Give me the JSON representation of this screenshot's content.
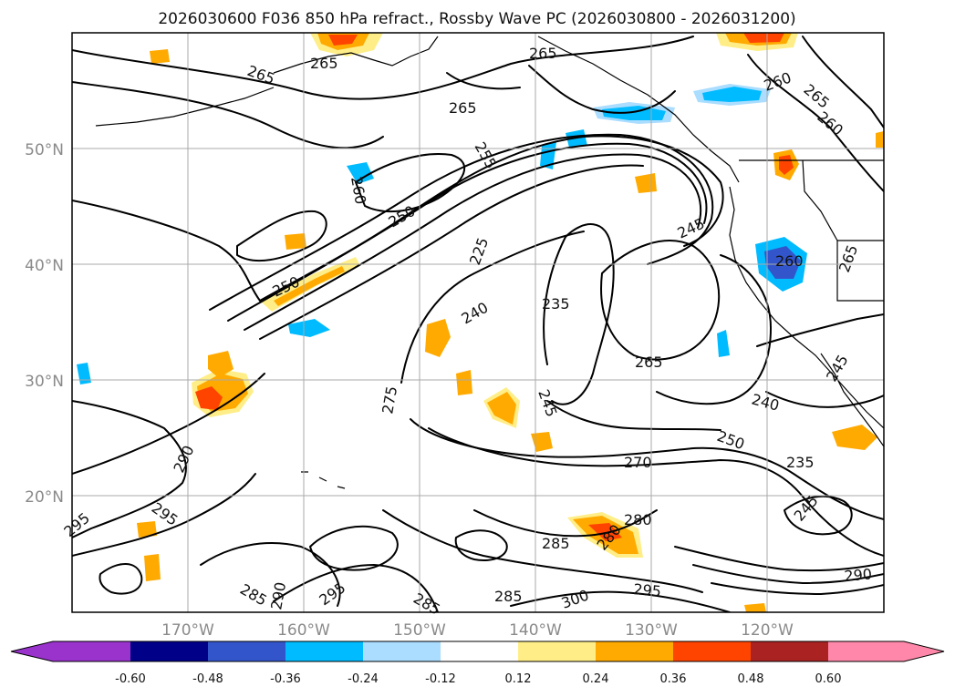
{
  "title": "2026030600 F036 850 hPa refract., Rossby Wave PC (2026030800 - 2026031200)",
  "lat_labels": [
    "50°N",
    "40°N",
    "30°N",
    "20°N"
  ],
  "lon_labels": [
    "170°W",
    "160°W",
    "150°W",
    "140°W",
    "130°W",
    "120°W"
  ],
  "contour_labels": [
    "265",
    "265",
    "265",
    "265",
    "260",
    "265",
    "260",
    "255",
    "260",
    "250",
    "250",
    "245",
    "260",
    "225",
    "240",
    "235",
    "265",
    "265",
    "245",
    "240",
    "270",
    "250",
    "235",
    "245",
    "245",
    "275",
    "290",
    "295",
    "295",
    "285",
    "290",
    "295",
    "285",
    "285",
    "300",
    "280",
    "280",
    "285",
    "295",
    "290"
  ],
  "colorbar": {
    "ticks": [
      "-0.60",
      "-0.48",
      "-0.36",
      "-0.24",
      "-0.12",
      "0.12",
      "0.24",
      "0.36",
      "0.48",
      "0.60"
    ],
    "colors": [
      "#9933cc",
      "#000088",
      "#3355cc",
      "#00bbff",
      "#aaddff",
      "#ffffff",
      "#ffee88",
      "#ffaa00",
      "#ff4400",
      "#aa2222",
      "#ff88aa"
    ]
  }
}
